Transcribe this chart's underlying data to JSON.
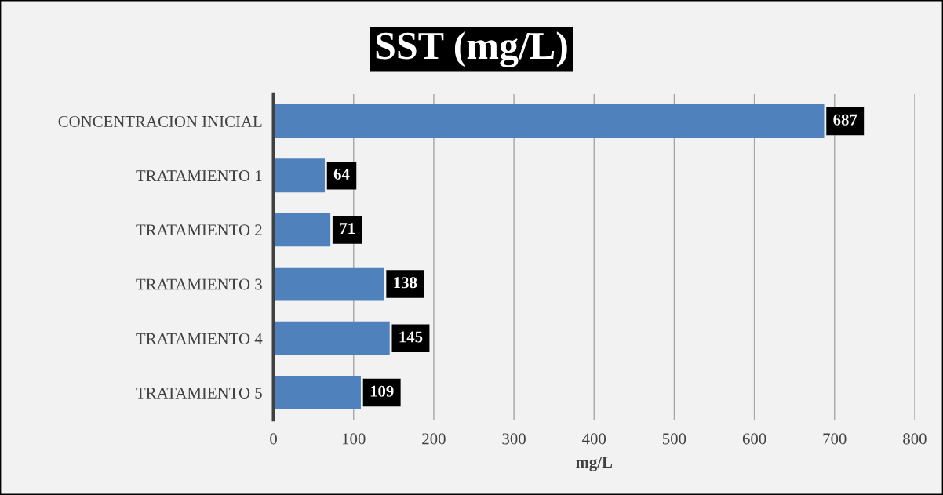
{
  "chart_data": {
    "type": "bar",
    "orientation": "horizontal",
    "title": "SST (mg/L)",
    "xlabel": "mg/L",
    "categories": [
      "CONCENTRACION INICIAL",
      "TRATAMIENTO 1",
      "TRATAMIENTO 2",
      "TRATAMIENTO 3",
      "TRATAMIENTO 4",
      "TRATAMIENTO 5"
    ],
    "values": [
      687,
      64,
      71,
      138,
      145,
      109
    ],
    "color": "#4f81bd",
    "xlim": [
      0,
      800
    ],
    "xticks": [
      0,
      100,
      200,
      300,
      400,
      500,
      600,
      700,
      800
    ],
    "grid": "x",
    "data_labels": true
  }
}
